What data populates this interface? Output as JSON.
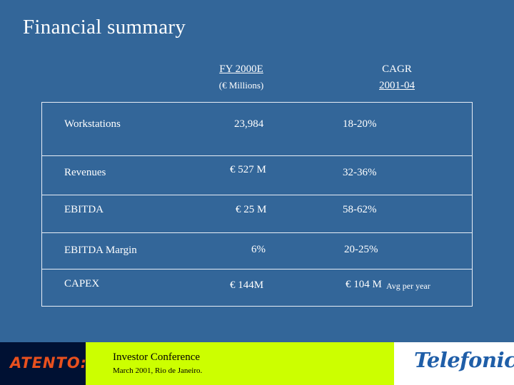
{
  "slide": {
    "title": "Financial summary"
  },
  "columns": {
    "fy_label": "FY 2000E",
    "fy_unit": "(€ Millions)",
    "cagr_label": "CAGR",
    "cagr_period": "2001-04"
  },
  "rows": [
    {
      "label": "Workstations",
      "fy": "23,984",
      "cagr": "18-20%",
      "cagr_note": ""
    },
    {
      "label": "Revenues",
      "fy": "€ 527 M",
      "cagr": "32-36%",
      "cagr_note": ""
    },
    {
      "label": "EBITDA",
      "fy": "€ 25 M",
      "cagr": "58-62%",
      "cagr_note": ""
    },
    {
      "label": "EBITDA Margin",
      "fy": "6%",
      "cagr": "20-25%",
      "cagr_note": ""
    },
    {
      "label": "CAPEX",
      "fy": "€ 144M",
      "cagr": "€ 104 M",
      "cagr_note": "Avg per year"
    }
  ],
  "footer": {
    "event": "Investor Conference",
    "date_place": "March 2001, Rio de Janeiro.",
    "left_logo": "ATENTO:",
    "right_logo": "Telefonica",
    "colors": {
      "left_bg": "#001133",
      "mid_bg": "#ccff00",
      "right_bg": "#ffffff",
      "atento": "#e8501e",
      "telefonica": "#1f5ea8"
    }
  }
}
